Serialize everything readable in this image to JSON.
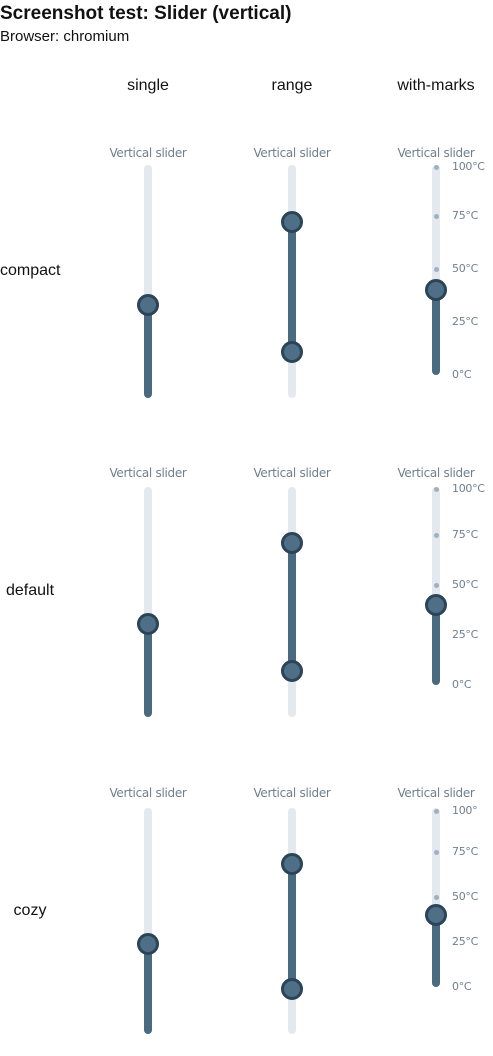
{
  "header": {
    "title": "Screenshot test: Slider (vertical)",
    "subtitle": "Browser: chromium"
  },
  "columns": [
    "single",
    "range",
    "with-marks"
  ],
  "rows": [
    {
      "label": "compact",
      "single": {
        "caption": "Vertical slider",
        "value": 40
      },
      "range": {
        "caption": "Vertical slider",
        "values": [
          20,
          80
        ]
      },
      "with_marks": {
        "caption": "Vertical slider",
        "value": 40,
        "marks": [
          "100°C",
          "75°C",
          "50°C",
          "25°C",
          "0°C"
        ]
      }
    },
    {
      "label": "default",
      "single": {
        "caption": "Vertical slider",
        "value": 40
      },
      "range": {
        "caption": "Vertical slider",
        "values": [
          20,
          80
        ]
      },
      "with_marks": {
        "caption": "Vertical slider",
        "value": 40,
        "marks": [
          "100°C",
          "75°C",
          "50°C",
          "25°C",
          "0°C"
        ]
      }
    },
    {
      "label": "cozy",
      "single": {
        "caption": "Vertical slider",
        "value": 40
      },
      "range": {
        "caption": "Vertical slider",
        "values": [
          20,
          80
        ]
      },
      "with_marks": {
        "caption": "Vertical slider",
        "value": 40,
        "marks": [
          "100°",
          "75°C",
          "50°C",
          "25°C",
          "0°C"
        ]
      }
    }
  ],
  "colors": {
    "track": "#e3e9ef",
    "fill": "#4a6a7f",
    "thumb": "#4f6f86",
    "thumb_border": "#2c4457",
    "mark": "#9fb0bf",
    "caption": "#6f7f8d"
  }
}
